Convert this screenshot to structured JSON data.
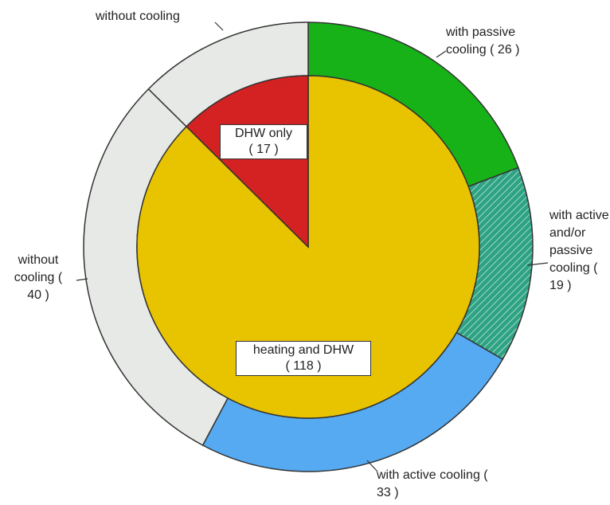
{
  "chart_data": {
    "type": "nested-pie",
    "inner": {
      "categories": [
        "heating and DHW",
        "DHW only"
      ],
      "values": [
        118,
        17
      ],
      "value_labels": [
        "( 118 )",
        "( 17 )"
      ],
      "colors": [
        "#e8c300",
        "#d42222"
      ]
    },
    "outer": {
      "categories": [
        "with passive cooling",
        "with active and/or passive cooling",
        "with active cooling",
        "without cooling",
        "without cooling"
      ],
      "values": [
        26,
        19,
        33,
        40,
        17
      ],
      "value_labels": [
        "( 26 )",
        "( 19 )",
        "( 33 )",
        "( 40 )",
        null
      ],
      "colors": [
        "#17b217",
        "#2ea383",
        "#55aaf2",
        "#e6e9e6",
        "#e6e9e6"
      ],
      "hatch": [
        false,
        true,
        false,
        false,
        false
      ]
    }
  }
}
